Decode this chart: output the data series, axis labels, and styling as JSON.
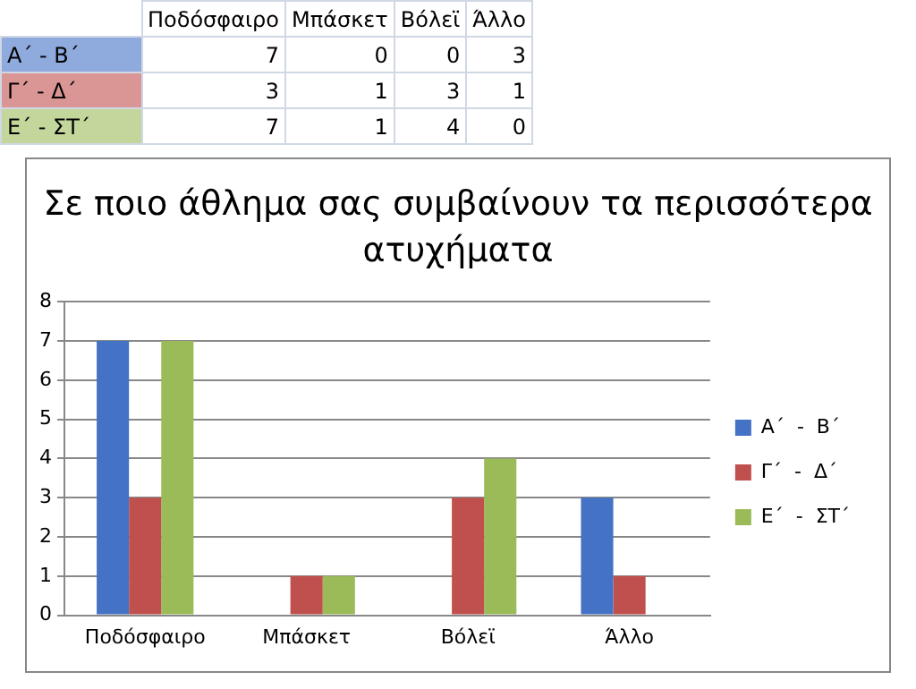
{
  "chart_data": {
    "type": "bar",
    "title": "Σε ποιο άθλημα σας συμβαίνουν τα περισσότερα ατυχήματα",
    "categories": [
      "Ποδόσφαιρο",
      "Μπάσκετ",
      "Βόλεϊ",
      "Άλλο"
    ],
    "series": [
      {
        "name": "Α΄  -  Β΄",
        "color": "#4472c4",
        "values": [
          7,
          0,
          0,
          3
        ]
      },
      {
        "name": "Γ΄  -  Δ΄",
        "color": "#c0504d",
        "values": [
          3,
          1,
          3,
          1
        ]
      },
      {
        "name": "Ε΄  -  ΣΤ΄",
        "color": "#9bbb59",
        "values": [
          7,
          1,
          4,
          0
        ]
      }
    ],
    "ylim": [
      0,
      8
    ],
    "yticks": [
      0,
      1,
      2,
      3,
      4,
      5,
      6,
      7,
      8
    ],
    "grid": "y",
    "legend": "right",
    "annotations": [
      "7",
      "0",
      "0",
      "3",
      "3",
      "1",
      "3",
      "1",
      "7",
      "1",
      "4",
      "0"
    ]
  }
}
